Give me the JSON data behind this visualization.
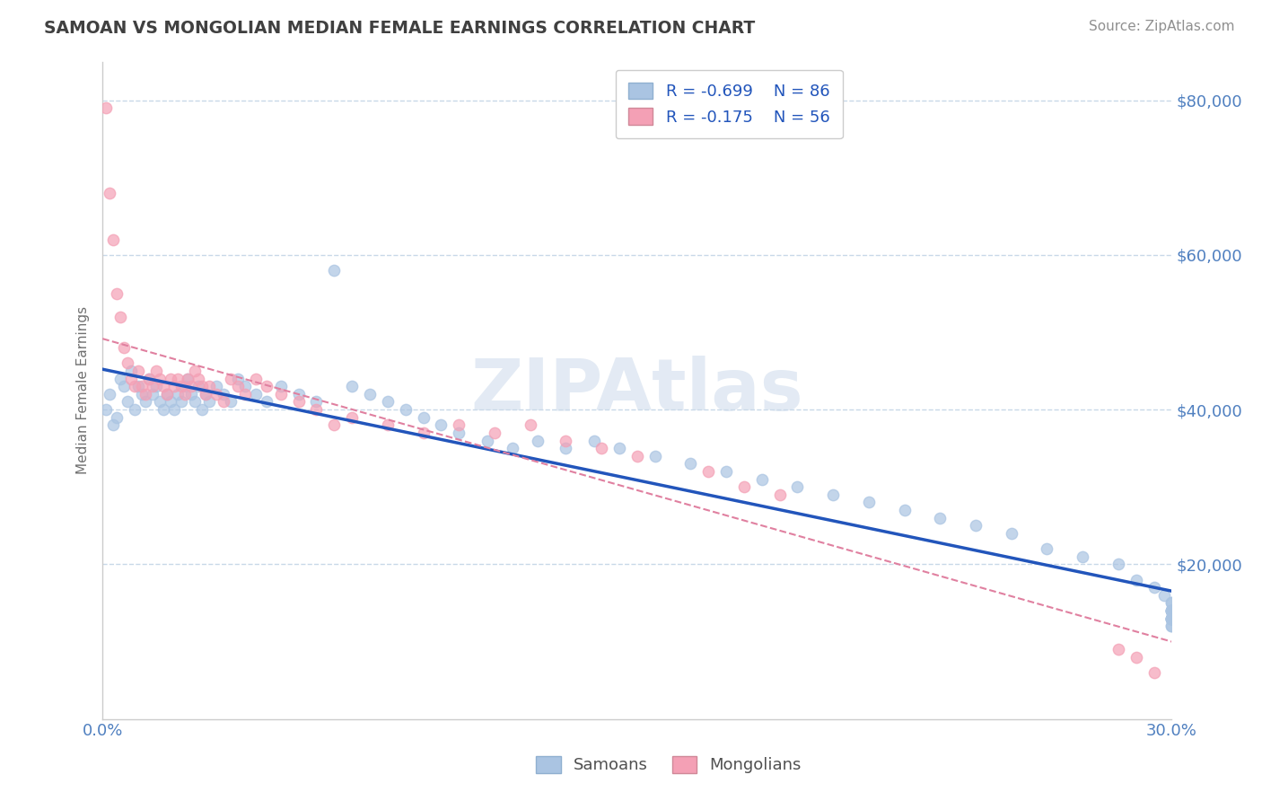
{
  "title": "SAMOAN VS MONGOLIAN MEDIAN FEMALE EARNINGS CORRELATION CHART",
  "source_text": "Source: ZipAtlas.com",
  "ylabel": "Median Female Earnings",
  "xlim": [
    0.0,
    0.3
  ],
  "ylim": [
    0,
    85000
  ],
  "yticks": [
    0,
    20000,
    40000,
    60000,
    80000
  ],
  "ytick_labels": [
    "",
    "$20,000",
    "$40,000",
    "$60,000",
    "$80,000"
  ],
  "xticks": [
    0.0,
    0.05,
    0.1,
    0.15,
    0.2,
    0.25,
    0.3
  ],
  "samoan_color": "#aac4e2",
  "mongolian_color": "#f4a0b5",
  "samoan_R": -0.699,
  "samoan_N": 86,
  "mongolian_R": -0.175,
  "mongolian_N": 56,
  "trend_samoan_color": "#2255bb",
  "trend_mongolian_color": "#e080a0",
  "watermark": "ZIPAtlas",
  "background_color": "#ffffff",
  "grid_color": "#c8d8e8",
  "title_color": "#404040",
  "tick_label_color": "#5080c0",
  "samoan_scatter_x": [
    0.001,
    0.002,
    0.003,
    0.004,
    0.005,
    0.006,
    0.007,
    0.008,
    0.009,
    0.01,
    0.011,
    0.012,
    0.013,
    0.014,
    0.015,
    0.016,
    0.017,
    0.018,
    0.019,
    0.02,
    0.021,
    0.022,
    0.023,
    0.024,
    0.025,
    0.026,
    0.027,
    0.028,
    0.029,
    0.03,
    0.032,
    0.034,
    0.036,
    0.038,
    0.04,
    0.043,
    0.046,
    0.05,
    0.055,
    0.06,
    0.065,
    0.07,
    0.075,
    0.08,
    0.085,
    0.09,
    0.095,
    0.1,
    0.108,
    0.115,
    0.122,
    0.13,
    0.138,
    0.145,
    0.155,
    0.165,
    0.175,
    0.185,
    0.195,
    0.205,
    0.215,
    0.225,
    0.235,
    0.245,
    0.255,
    0.265,
    0.275,
    0.285,
    0.29,
    0.295,
    0.298,
    0.3,
    0.3,
    0.3,
    0.3,
    0.3,
    0.3,
    0.3,
    0.3,
    0.3,
    0.3,
    0.3,
    0.3,
    0.3,
    0.3,
    0.3
  ],
  "samoan_scatter_y": [
    40000,
    42000,
    38000,
    39000,
    44000,
    43000,
    41000,
    45000,
    40000,
    43000,
    42000,
    41000,
    44000,
    42000,
    43000,
    41000,
    40000,
    42000,
    41000,
    40000,
    42000,
    41000,
    43000,
    44000,
    42000,
    41000,
    43000,
    40000,
    42000,
    41000,
    43000,
    42000,
    41000,
    44000,
    43000,
    42000,
    41000,
    43000,
    42000,
    41000,
    58000,
    43000,
    42000,
    41000,
    40000,
    39000,
    38000,
    37000,
    36000,
    35000,
    36000,
    35000,
    36000,
    35000,
    34000,
    33000,
    32000,
    31000,
    30000,
    29000,
    28000,
    27000,
    26000,
    25000,
    24000,
    22000,
    21000,
    20000,
    18000,
    17000,
    16000,
    15000,
    15000,
    14000,
    14000,
    13000,
    14000,
    13000,
    14000,
    13000,
    12000,
    13000,
    13000,
    14000,
    12000,
    13000
  ],
  "mongolian_scatter_x": [
    0.001,
    0.002,
    0.003,
    0.004,
    0.005,
    0.006,
    0.007,
    0.008,
    0.009,
    0.01,
    0.011,
    0.012,
    0.013,
    0.014,
    0.015,
    0.016,
    0.017,
    0.018,
    0.019,
    0.02,
    0.021,
    0.022,
    0.023,
    0.024,
    0.025,
    0.026,
    0.027,
    0.028,
    0.029,
    0.03,
    0.032,
    0.034,
    0.036,
    0.038,
    0.04,
    0.043,
    0.046,
    0.05,
    0.055,
    0.06,
    0.065,
    0.07,
    0.08,
    0.09,
    0.1,
    0.11,
    0.12,
    0.13,
    0.14,
    0.15,
    0.17,
    0.18,
    0.19,
    0.285,
    0.29,
    0.295
  ],
  "mongolian_scatter_y": [
    79000,
    68000,
    62000,
    55000,
    52000,
    48000,
    46000,
    44000,
    43000,
    45000,
    43000,
    42000,
    44000,
    43000,
    45000,
    44000,
    43000,
    42000,
    44000,
    43000,
    44000,
    43000,
    42000,
    44000,
    43000,
    45000,
    44000,
    43000,
    42000,
    43000,
    42000,
    41000,
    44000,
    43000,
    42000,
    44000,
    43000,
    42000,
    41000,
    40000,
    38000,
    39000,
    38000,
    37000,
    38000,
    37000,
    38000,
    36000,
    35000,
    34000,
    32000,
    30000,
    29000,
    9000,
    8000,
    6000
  ]
}
